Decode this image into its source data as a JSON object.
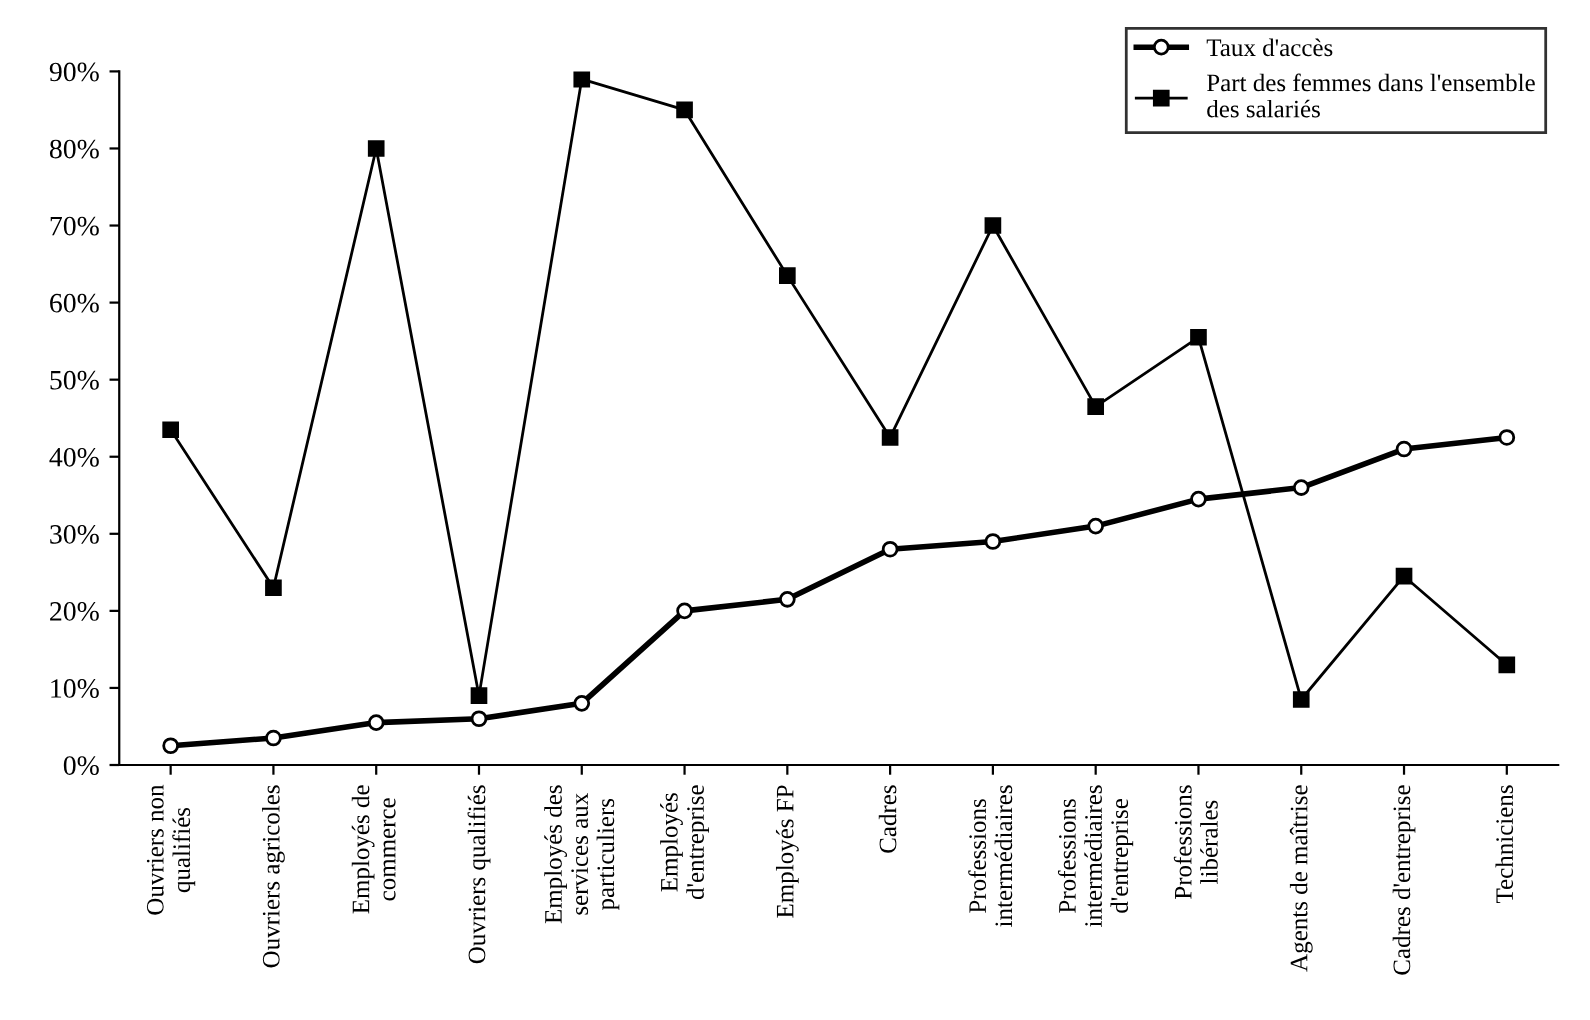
{
  "chart_data": {
    "type": "line",
    "categories": [
      "Ouvriers non\nqualifiés",
      "Ouvriers agricoles",
      "Employés de\ncommerce",
      "Ouvriers qualifiés",
      "Employés des\nservices aux\nparticuliers",
      "Employés\nd'entreprise",
      "Employés FP",
      "Cadres",
      "Professions\nintermédiaires",
      "Professions\nintermédiaires\nd'entreprise",
      "Professions\nlibérales",
      "Agents de maîtrise",
      "Cadres d'entreprise",
      "Techniciens"
    ],
    "series": [
      {
        "name": "Taux d'accès",
        "color": "#000000",
        "marker": "circle",
        "values": [
          2.5,
          3.5,
          5.5,
          6,
          8,
          20,
          21.5,
          28,
          29,
          31,
          34.5,
          36,
          41,
          42.5
        ]
      },
      {
        "name": "Part des femmes dans l'ensemble\ndes salariés",
        "color": "#000000",
        "marker": "square",
        "values": [
          43.5,
          23,
          80,
          9,
          89,
          85,
          63.5,
          42.5,
          70,
          46.5,
          55.5,
          8.5,
          24.5,
          13
        ]
      }
    ],
    "ylim": [
      0,
      90
    ],
    "yticks": [
      {
        "value": 0,
        "label": "0%"
      },
      {
        "value": 10,
        "label": "10%"
      },
      {
        "value": 20,
        "label": "20%"
      },
      {
        "value": 30,
        "label": "30%"
      },
      {
        "value": 40,
        "label": "40%"
      },
      {
        "value": 50,
        "label": "50%"
      },
      {
        "value": 60,
        "label": "60%"
      },
      {
        "value": 70,
        "label": "70%"
      },
      {
        "value": 80,
        "label": "80%"
      },
      {
        "value": 90,
        "label": "90%"
      }
    ],
    "grid": false,
    "legend": "top right",
    "line_style": "solid"
  }
}
